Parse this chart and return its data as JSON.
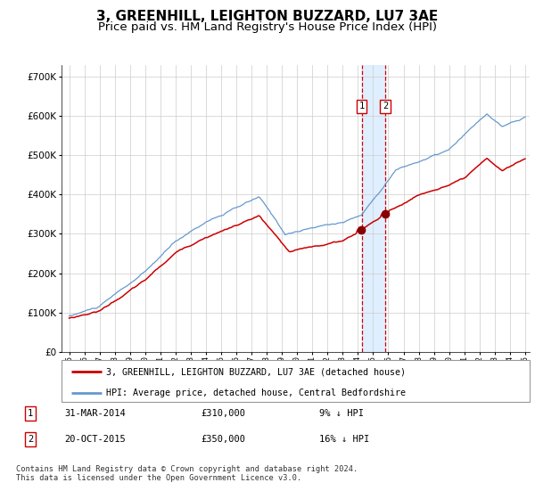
{
  "title": "3, GREENHILL, LEIGHTON BUZZARD, LU7 3AE",
  "subtitle": "Price paid vs. HM Land Registry's House Price Index (HPI)",
  "title_fontsize": 11,
  "subtitle_fontsize": 9.5,
  "ylim": [
    0,
    730000
  ],
  "yticks": [
    0,
    100000,
    200000,
    300000,
    400000,
    500000,
    600000,
    700000
  ],
  "ytick_labels": [
    "£0",
    "£100K",
    "£200K",
    "£300K",
    "£400K",
    "£500K",
    "£600K",
    "£700K"
  ],
  "background_color": "#ffffff",
  "grid_color": "#cccccc",
  "hpi_line_color": "#6699cc",
  "price_line_color": "#cc0000",
  "sale1_year": 2014.25,
  "sale2_year": 2015.8,
  "sale1_price": 310000,
  "sale2_price": 350000,
  "vline_color": "#cc0000",
  "vband_color": "#ddeeff",
  "legend_price_label": "3, GREENHILL, LEIGHTON BUZZARD, LU7 3AE (detached house)",
  "legend_hpi_label": "HPI: Average price, detached house, Central Bedfordshire",
  "table_row1": [
    "1",
    "31-MAR-2014",
    "£310,000",
    "9% ↓ HPI"
  ],
  "table_row2": [
    "2",
    "20-OCT-2015",
    "£350,000",
    "16% ↓ HPI"
  ],
  "footer": "Contains HM Land Registry data © Crown copyright and database right 2024.\nThis data is licensed under the Open Government Licence v3.0.",
  "x_start_year": 1995,
  "x_end_year": 2025
}
